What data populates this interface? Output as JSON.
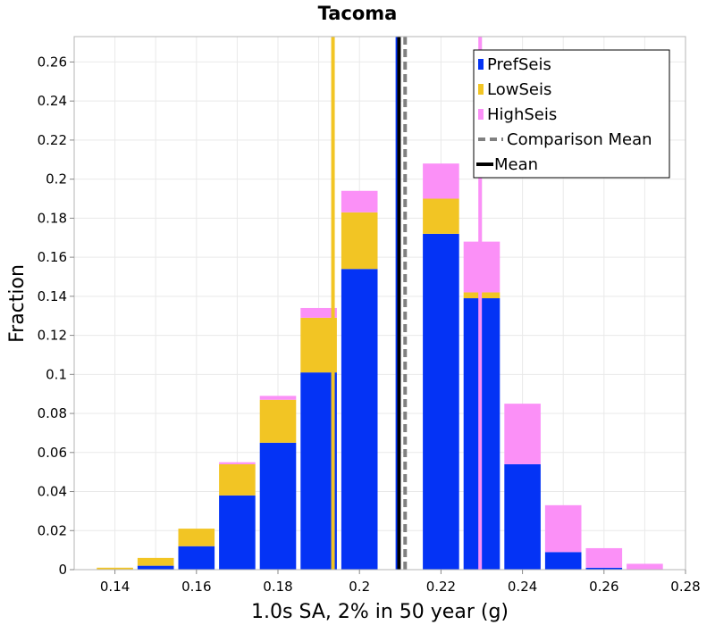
{
  "chart_data": {
    "type": "bar",
    "stacked": true,
    "title": "Tacoma",
    "xlabel": "1.0s SA, 2% in 50 year (g)",
    "ylabel": "Fraction",
    "xlim": [
      0.13,
      0.28
    ],
    "ylim": [
      0,
      0.273
    ],
    "bin_width": 0.01,
    "bin_centers": [
      0.14,
      0.15,
      0.16,
      0.17,
      0.18,
      0.19,
      0.2,
      0.21,
      0.22,
      0.23,
      0.24,
      0.25,
      0.26,
      0.27
    ],
    "series": [
      {
        "name": "PrefSeis",
        "color": "#0433f5",
        "values": [
          0,
          0.002,
          0.012,
          0.038,
          0.065,
          0.101,
          0.154,
          0,
          0.172,
          0.139,
          0.054,
          0.009,
          0.001,
          0
        ]
      },
      {
        "name": "LowSeis",
        "color": "#f2c524",
        "values": [
          0.001,
          0.004,
          0.009,
          0.016,
          0.022,
          0.028,
          0.029,
          0,
          0.018,
          0.003,
          0,
          0,
          0,
          0
        ]
      },
      {
        "name": "HighSeis",
        "color": "#fb90f7",
        "values": [
          0,
          0,
          0,
          0.001,
          0.002,
          0.005,
          0.011,
          0,
          0.018,
          0.026,
          0.031,
          0.024,
          0.01,
          0.003
        ]
      }
    ],
    "vertical_lines": [
      {
        "name": "LowSeis mean",
        "x": 0.1935,
        "color": "#f2c524",
        "style": "solid"
      },
      {
        "name": "PrefSeis mean",
        "x": 0.2093,
        "color": "#0433f5",
        "style": "solid"
      },
      {
        "name": "Mean",
        "x": 0.2097,
        "color": "#000000",
        "style": "solid"
      },
      {
        "name": "Comparison Mean",
        "x": 0.2112,
        "color": "#808080",
        "style": "dashed"
      },
      {
        "name": "HighSeis mean",
        "x": 0.2296,
        "color": "#fb90f7",
        "style": "solid"
      }
    ],
    "x_ticks": [
      "0.14",
      "0.16",
      "0.18",
      "0.2",
      "0.22",
      "0.24",
      "0.26",
      "0.28"
    ],
    "x_tick_values": [
      0.14,
      0.16,
      0.18,
      0.2,
      0.22,
      0.24,
      0.26,
      0.28
    ],
    "y_ticks": [
      "0",
      "0.02",
      "0.04",
      "0.06",
      "0.08",
      "0.1",
      "0.12",
      "0.14",
      "0.16",
      "0.18",
      "0.2",
      "0.22",
      "0.24",
      "0.26"
    ],
    "y_tick_values": [
      0,
      0.02,
      0.04,
      0.06,
      0.08,
      0.1,
      0.12,
      0.14,
      0.16,
      0.18,
      0.2,
      0.22,
      0.24,
      0.26
    ],
    "legend": {
      "position": "top-right",
      "entries": [
        {
          "label": "PrefSeis",
          "kind": "box",
          "color": "#0433f5"
        },
        {
          "label": "LowSeis",
          "kind": "box",
          "color": "#f2c524"
        },
        {
          "label": "HighSeis",
          "kind": "box",
          "color": "#fb90f7"
        },
        {
          "label": "Comparison Mean",
          "kind": "dashed",
          "color": "#808080"
        },
        {
          "label": "Mean",
          "kind": "line",
          "color": "#000000"
        }
      ]
    },
    "grid": true
  }
}
